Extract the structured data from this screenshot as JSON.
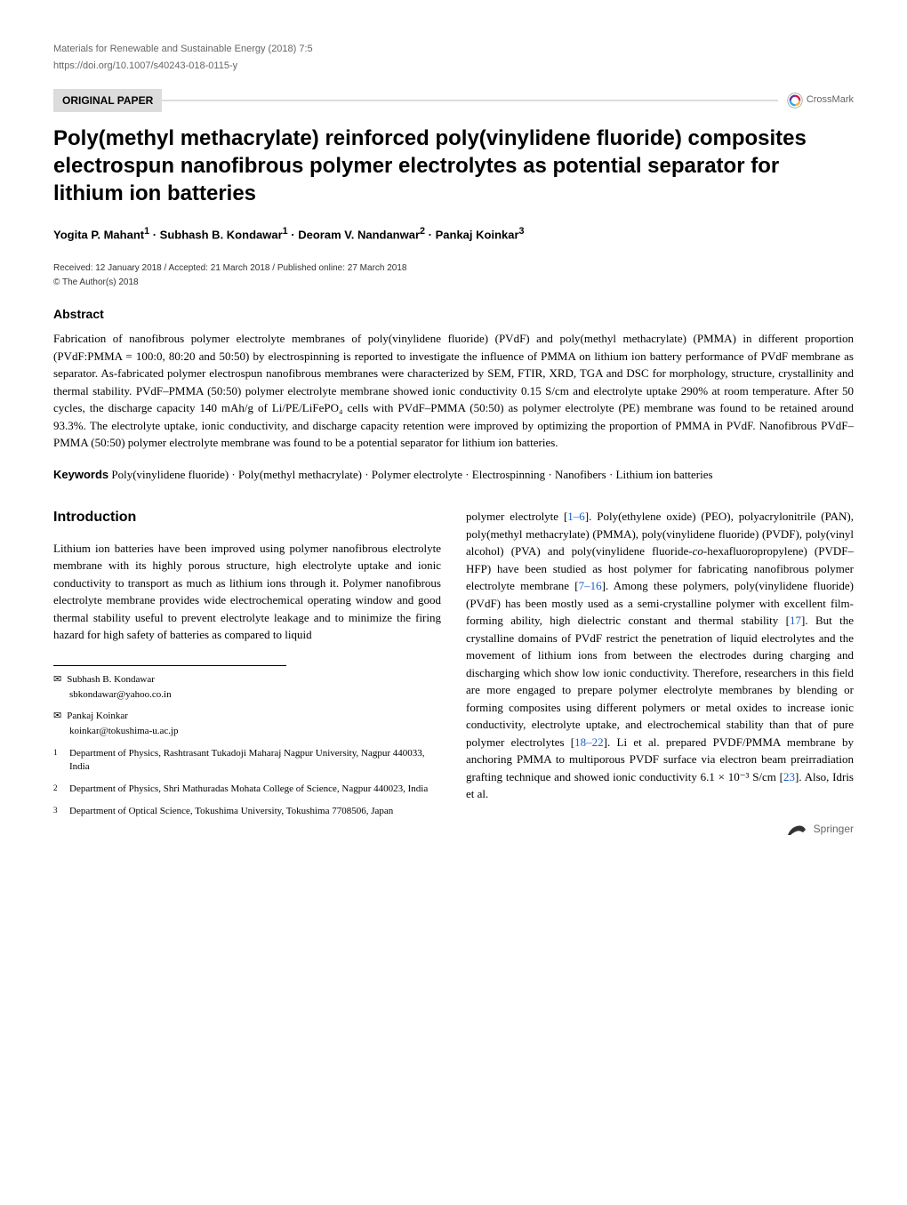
{
  "header": {
    "journal": "Materials for Renewable and Sustainable Energy (2018) 7:5",
    "doi": "https://doi.org/10.1007/s40243-018-0115-y",
    "article_type": "ORIGINAL PAPER",
    "crossmark_label": "CrossMark"
  },
  "title": "Poly(methyl methacrylate) reinforced poly(vinylidene fluoride) composites electrospun nanofibrous polymer electrolytes as potential separator for lithium ion batteries",
  "authors_html": "Yogita P. Mahant<sup>1</sup> · Subhash B. Kondawar<sup>1</sup> · Deoram V. Nandanwar<sup>2</sup> · Pankaj Koinkar<sup>3</sup>",
  "dates": "Received: 12 January 2018 / Accepted: 21 March 2018 / Published online: 27 March 2018",
  "copyright": "© The Author(s) 2018",
  "abstract": {
    "heading": "Abstract",
    "text": "Fabrication of nanofibrous polymer electrolyte membranes of poly(vinylidene fluoride) (PVdF) and poly(methyl methacrylate) (PMMA) in different proportion (PVdF:PMMA = 100:0, 80:20 and 50:50) by electrospinning is reported to investigate the influence of PMMA on lithium ion battery performance of PVdF membrane as separator. As-fabricated polymer electrospun nanofibrous membranes were characterized by SEM, FTIR, XRD, TGA and DSC for morphology, structure, crystallinity and thermal stability. PVdF–PMMA (50:50) polymer electrolyte membrane showed ionic conductivity 0.15 S/cm and electrolyte uptake 290% at room temperature. After 50 cycles, the discharge capacity 140 mAh/g of Li/PE/LiFePO₄ cells with PVdF–PMMA (50:50) as polymer electrolyte (PE) membrane was found to be retained around 93.3%. The electrolyte uptake, ionic conductivity, and discharge capacity retention were improved by optimizing the proportion of PMMA in PVdF. Nanofibrous PVdF–PMMA (50:50) polymer electrolyte membrane was found to be a potential separator for lithium ion batteries."
  },
  "keywords": {
    "label": "Keywords",
    "text": " Poly(vinylidene fluoride) · Poly(methyl methacrylate) · Polymer electrolyte · Electrospinning · Nanofibers · Lithium ion batteries"
  },
  "introduction": {
    "heading": "Introduction",
    "col1": "Lithium ion batteries have been improved using polymer nanofibrous electrolyte membrane with its highly porous structure, high electrolyte uptake and ionic conductivity to transport as much as lithium ions through it. Polymer nanofibrous electrolyte membrane provides wide electrochemical operating window and good thermal stability useful to prevent electrolyte leakage and to minimize the firing hazard for high safety of batteries as compared to liquid",
    "col2_html": "polymer electrolyte [<span class=\"ref-link\">1–6</span>]. Poly(ethylene oxide) (PEO), polyacrylonitrile (PAN), poly(methyl methacrylate) (PMMA), poly(vinylidene fluoride) (PVDF), poly(vinyl alcohol) (PVA) and poly(vinylidene fluoride-<i>co</i>-hexafluoropropylene) (PVDF–HFP) have been studied as host polymer for fabricating nanofibrous polymer electrolyte membrane [<span class=\"ref-link\">7–16</span>]. Among these polymers, poly(vinylidene fluoride) (PVdF) has been mostly used as a semi-crystalline polymer with excellent film-forming ability, high dielectric constant and thermal stability [<span class=\"ref-link\">17</span>]. But the crystalline domains of PVdF restrict the penetration of liquid electrolytes and the movement of lithium ions from between the electrodes during charging and discharging which show low ionic conductivity. Therefore, researchers in this field are more engaged to prepare polymer electrolyte membranes by blending or forming composites using different polymers or metal oxides to increase ionic conductivity, electrolyte uptake, and electrochemical stability than that of pure polymer electrolytes [<span class=\"ref-link\">18–22</span>]. Li et al. prepared PVDF/PMMA membrane by anchoring PMMA to multiporous PVDF surface via electron beam preirradiation grafting technique and showed ionic conductivity 6.1 × 10⁻³ S/cm [<span class=\"ref-link\">23</span>]. Also, Idris et al."
  },
  "correspondence": [
    {
      "name": "Subhash B. Kondawar",
      "email": "sbkondawar@yahoo.co.in"
    },
    {
      "name": "Pankaj Koinkar",
      "email": "koinkar@tokushima-u.ac.jp"
    }
  ],
  "affiliations": [
    {
      "num": "1",
      "text": "Department of Physics, Rashtrasant Tukadoji Maharaj Nagpur University, Nagpur 440033, India"
    },
    {
      "num": "2",
      "text": "Department of Physics, Shri Mathuradas Mohata College of Science, Nagpur 440023, India"
    },
    {
      "num": "3",
      "text": "Department of Optical Science, Tokushima University, Tokushima 7708506, Japan"
    }
  ],
  "footer": {
    "publisher": "Springer"
  }
}
